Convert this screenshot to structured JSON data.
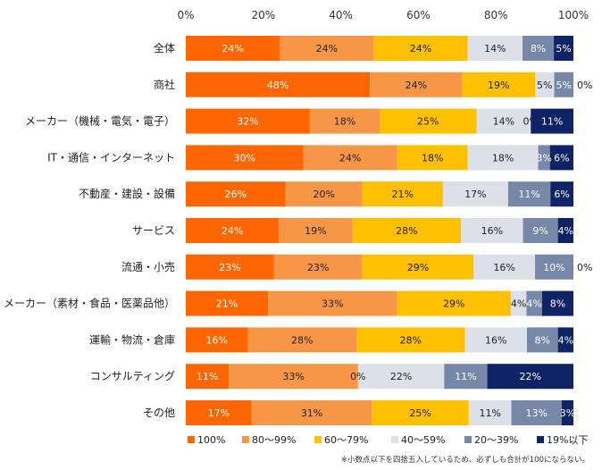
{
  "chart_data": {
    "type": "bar",
    "orientation": "horizontal",
    "stacked": true,
    "xlim": [
      0,
      100
    ],
    "x_ticks": [
      "0%",
      "20%",
      "40%",
      "60%",
      "80%",
      "100%"
    ],
    "categories": [
      "全体",
      "商社",
      "メーカー（機械・電気・電子）",
      "IT・通信・インターネット",
      "不動産・建設・設備",
      "サービス",
      "流通・小売",
      "メーカー（素材・食品・医薬品他）",
      "運輸・物流・倉庫",
      "コンサルティング",
      "その他"
    ],
    "series": [
      {
        "name": "100%",
        "color": "#ff6600",
        "values": [
          24,
          48,
          32,
          30,
          26,
          24,
          23,
          21,
          16,
          11,
          17
        ],
        "labels": [
          "24%",
          "48%",
          "32%",
          "30%",
          "26%",
          "24%",
          "23%",
          "21%",
          "16%",
          "11%",
          "17%"
        ]
      },
      {
        "name": "80～99%",
        "color": "#f79646",
        "values": [
          24,
          24,
          18,
          24,
          20,
          19,
          23,
          33,
          28,
          33,
          31
        ],
        "labels": [
          "24%",
          "24%",
          "18%",
          "24%",
          "20%",
          "19%",
          "23%",
          "33%",
          "28%",
          "33%",
          "31%"
        ]
      },
      {
        "name": "60～79%",
        "color": "#ffc000",
        "values": [
          24,
          19,
          25,
          18,
          21,
          28,
          29,
          29,
          28,
          0,
          25
        ],
        "labels": [
          "24%",
          "19%",
          "25%",
          "18%",
          "21%",
          "28%",
          "29%",
          "29%",
          "28%",
          "0%",
          "25%"
        ]
      },
      {
        "name": "40～59%",
        "color": "#dce0e8",
        "values": [
          14,
          5,
          14,
          18,
          17,
          16,
          16,
          4,
          16,
          22,
          11
        ],
        "labels": [
          "14%",
          "5%",
          "14%",
          "18%",
          "17%",
          "16%",
          "16%",
          "4%",
          "16%",
          "22%",
          "11%"
        ]
      },
      {
        "name": "20～39%",
        "color": "#7687a8",
        "values": [
          8,
          5,
          0,
          3,
          11,
          9,
          10,
          4,
          8,
          11,
          13
        ],
        "labels": [
          "8%",
          "5%",
          "0%",
          "3%",
          "11%",
          "9%",
          "10%",
          "4%",
          "8%",
          "11%",
          "13%"
        ]
      },
      {
        "name": "19%以下",
        "color": "#0f2466",
        "values": [
          5,
          0,
          11,
          6,
          6,
          4,
          0,
          8,
          4,
          22,
          3
        ],
        "labels": [
          "5%",
          "0%",
          "11%",
          "6%",
          "6%",
          "4%",
          "0%",
          "8%",
          "4%",
          "22%",
          "3%"
        ]
      }
    ],
    "legend_position": "bottom",
    "footnote": "※小数点以下を四捨五入しているため、必ずしも合計が100にならない。"
  }
}
